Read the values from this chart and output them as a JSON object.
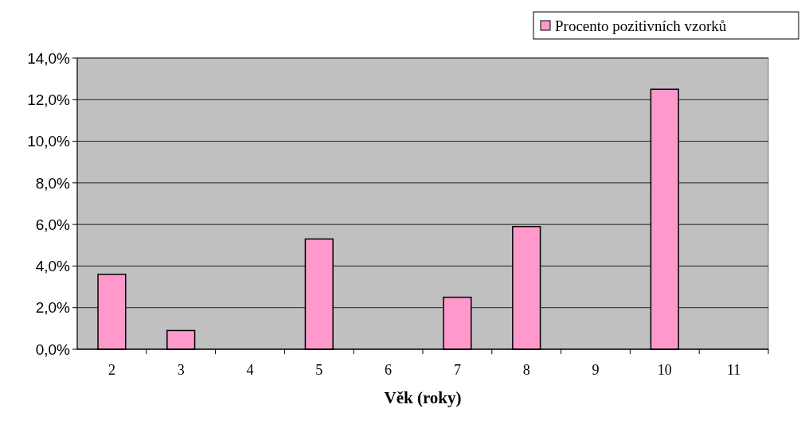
{
  "chart_data": {
    "type": "bar",
    "xlabel": "Věk (roky)",
    "categories": [
      "2",
      "3",
      "4",
      "5",
      "6",
      "7",
      "8",
      "9",
      "10",
      "11"
    ],
    "series": [
      {
        "name": "Procento pozitivních vzorků",
        "color": "#ff99cc",
        "values": [
          3.6,
          0.9,
          0,
          5.3,
          0,
          2.5,
          5.9,
          0,
          12.5,
          0
        ]
      }
    ],
    "ylim": [
      0,
      14
    ],
    "yticks": [
      {
        "value": 0,
        "label": "0,0%"
      },
      {
        "value": 2,
        "label": "2,0%"
      },
      {
        "value": 4,
        "label": "4,0%"
      },
      {
        "value": 6,
        "label": "6,0%"
      },
      {
        "value": 8,
        "label": "8,0%"
      },
      {
        "value": 10,
        "label": "10,0%"
      },
      {
        "value": 12,
        "label": "12,0%"
      },
      {
        "value": 14,
        "label": "14,0%"
      }
    ],
    "grid": "y",
    "legend": "top right"
  }
}
